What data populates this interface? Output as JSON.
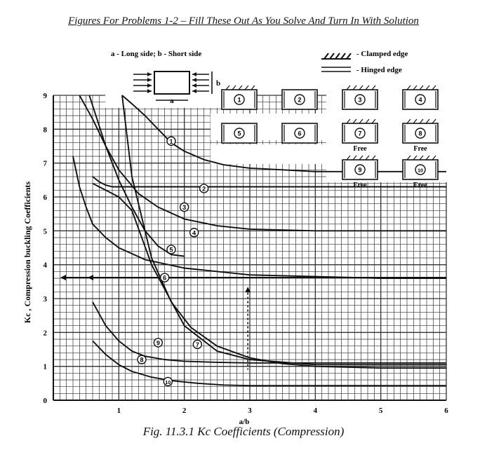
{
  "page": {
    "heading": "Figures For Problems 1-2 – Fill These Out As You Solve And Turn In With Solution",
    "caption": "Fig. 11.3.1  Kc Coefficients (Compression)"
  },
  "legend": {
    "side_note": "a - Long side;  b - Short side",
    "clamped": "- Clamped edge",
    "hinged": "- Hinged edge",
    "plate_a": "a",
    "plate_b": "b",
    "cases": [
      {
        "num": "1",
        "note": ""
      },
      {
        "num": "2",
        "note": ""
      },
      {
        "num": "3",
        "note": ""
      },
      {
        "num": "4",
        "note": ""
      },
      {
        "num": "5",
        "note": ""
      },
      {
        "num": "6",
        "note": ""
      },
      {
        "num": "7",
        "note": "Free"
      },
      {
        "num": "8",
        "note": "Free"
      },
      {
        "num": "9",
        "note": "Free"
      },
      {
        "num": "10",
        "note": "Free"
      }
    ]
  },
  "chart_data": {
    "type": "line",
    "xlabel": "a/b",
    "ylabel": "Kc , Compression buckling Coefficients",
    "xlim": [
      0,
      6
    ],
    "ylim": [
      0,
      9
    ],
    "x_ticks": [
      "1",
      "2",
      "3",
      "4",
      "5",
      "6"
    ],
    "y_ticks": [
      "0",
      "1",
      "2",
      "3",
      "4",
      "5",
      "6",
      "7",
      "8",
      "9"
    ],
    "grid": true,
    "series": [
      {
        "name": "1",
        "x": [
          1.05,
          1.2,
          1.4,
          1.6,
          1.8,
          2.0,
          2.3,
          2.6,
          3.0,
          3.5,
          4.0,
          5.0,
          6.0
        ],
        "y": [
          9.0,
          8.75,
          8.4,
          8.0,
          7.6,
          7.35,
          7.1,
          6.95,
          6.85,
          6.8,
          6.75,
          6.75,
          6.75
        ]
      },
      {
        "name": "2",
        "x": [
          0.6,
          0.7,
          0.8,
          0.9,
          1.0,
          1.2,
          1.5,
          2.0,
          2.5,
          3.0,
          4.0,
          5.0,
          6.0
        ],
        "y": [
          6.6,
          6.45,
          6.35,
          6.3,
          6.3,
          6.3,
          6.3,
          6.3,
          6.3,
          6.3,
          6.3,
          6.3,
          6.3
        ]
      },
      {
        "name": "3",
        "x": [
          0.4,
          0.6,
          0.8,
          1.0,
          1.3,
          1.6,
          2.0,
          2.5,
          3.0,
          4.0,
          5.0,
          6.0
        ],
        "y": [
          9.0,
          8.3,
          7.5,
          6.8,
          6.1,
          5.7,
          5.35,
          5.15,
          5.05,
          5.0,
          5.0,
          5.0
        ]
      },
      {
        "name": "4",
        "x": [
          0.55,
          0.65,
          0.8,
          1.0,
          1.2,
          1.4,
          1.6,
          1.8,
          2.0
        ],
        "y": [
          9.0,
          8.4,
          7.5,
          6.5,
          5.7,
          5.0,
          4.55,
          4.3,
          4.25
        ]
      },
      {
        "name": "5",
        "x": [
          0.3,
          0.4,
          0.5,
          0.6,
          0.8,
          1.0,
          1.4,
          2.0,
          2.5,
          3.0,
          4.0,
          5.0,
          6.0
        ],
        "y": [
          7.2,
          6.3,
          5.7,
          5.2,
          4.8,
          4.5,
          4.15,
          3.9,
          3.8,
          3.7,
          3.65,
          3.6,
          3.6
        ]
      },
      {
        "name": "6",
        "x": [
          0.15,
          0.3,
          0.5,
          0.7,
          1.0,
          1.5,
          2.0,
          3.0,
          4.0,
          6.0
        ],
        "y": [
          3.62,
          3.62,
          3.62,
          3.62,
          3.62,
          3.62,
          3.62,
          3.62,
          3.62,
          3.62
        ]
      },
      {
        "name": "7",
        "x": [
          1.05,
          1.2,
          1.5,
          1.8,
          2.1,
          2.5,
          3.0,
          3.5,
          4.0,
          5.0,
          6.0
        ],
        "y": [
          9.0,
          6.6,
          4.2,
          2.9,
          2.15,
          1.6,
          1.25,
          1.08,
          1.0,
          0.95,
          0.95
        ]
      },
      {
        "name": "8",
        "x": [
          0.6,
          0.7,
          0.8,
          1.0,
          1.2,
          1.5,
          2.0,
          2.5,
          3.0,
          4.0,
          5.0,
          6.0
        ],
        "y": [
          6.4,
          6.3,
          6.2,
          6.0,
          5.6,
          4.0,
          2.2,
          1.45,
          1.2,
          1.05,
          1.05,
          1.05
        ]
      },
      {
        "name": "9",
        "x": [
          0.6,
          0.8,
          1.0,
          1.2,
          1.4,
          1.7,
          2.0,
          2.5,
          3.0,
          4.0,
          5.0,
          6.0
        ],
        "y": [
          2.9,
          2.2,
          1.75,
          1.45,
          1.3,
          1.2,
          1.15,
          1.12,
          1.1,
          1.1,
          1.1,
          1.1
        ]
      },
      {
        "name": "10",
        "x": [
          0.6,
          0.8,
          1.0,
          1.2,
          1.5,
          1.8,
          2.2,
          2.6,
          3.0,
          4.0,
          5.0,
          6.0
        ],
        "y": [
          1.75,
          1.35,
          1.05,
          0.85,
          0.68,
          0.58,
          0.5,
          0.45,
          0.43,
          0.43,
          0.43,
          0.43
        ]
      }
    ],
    "curve_labels": [
      {
        "name": "1",
        "x": 1.8,
        "y": 7.65
      },
      {
        "name": "2",
        "x": 2.3,
        "y": 6.25
      },
      {
        "name": "3",
        "x": 2.0,
        "y": 5.7
      },
      {
        "name": "4",
        "x": 2.15,
        "y": 4.95
      },
      {
        "name": "5",
        "x": 1.8,
        "y": 4.45
      },
      {
        "name": "6",
        "x": 1.7,
        "y": 3.62
      },
      {
        "name": "7",
        "x": 2.2,
        "y": 1.65
      },
      {
        "name": "9",
        "x": 1.6,
        "y": 1.7
      },
      {
        "name": "8",
        "x": 1.35,
        "y": 1.2
      },
      {
        "name": "10",
        "x": 1.75,
        "y": 0.55
      }
    ],
    "colors": {
      "ink": "#111111",
      "grid": "#333333"
    }
  }
}
